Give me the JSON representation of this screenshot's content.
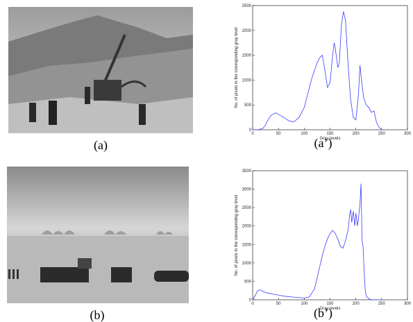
{
  "photos": [
    {
      "caption": "(a)"
    },
    {
      "caption": "(b)"
    }
  ],
  "chart_data": [
    {
      "type": "line",
      "caption": "(a’)",
      "x_label": "Gray levels",
      "y_label": "No. of pixels in the corresponding gray level",
      "x": [
        0,
        10,
        20,
        25,
        30,
        35,
        40,
        45,
        50,
        55,
        60,
        70,
        80,
        90,
        100,
        105,
        110,
        115,
        120,
        125,
        130,
        135,
        140,
        145,
        150,
        155,
        158,
        160,
        165,
        168,
        172,
        176,
        180,
        185,
        190,
        195,
        200,
        205,
        208,
        212,
        215,
        220,
        225,
        230,
        235,
        240,
        245,
        250
      ],
      "series": [
        {
          "color": "#3b3bff",
          "values": [
            0,
            0,
            30,
            100,
            200,
            280,
            320,
            340,
            310,
            280,
            250,
            180,
            160,
            250,
            450,
            650,
            850,
            1050,
            1200,
            1350,
            1450,
            1500,
            1200,
            850,
            950,
            1500,
            1750,
            1650,
            1250,
            1350,
            2100,
            2380,
            2200,
            1300,
            600,
            250,
            200,
            700,
            1300,
            900,
            650,
            500,
            450,
            350,
            380,
            150,
            50,
            0
          ]
        }
      ],
      "xlim": [
        0,
        300
      ],
      "xticks": [
        0,
        50,
        100,
        150,
        200,
        250,
        300
      ],
      "ylim": [
        0,
        2500
      ],
      "yticks": [
        0,
        500,
        1000,
        1500,
        2000,
        2500
      ]
    },
    {
      "type": "line",
      "caption": "(b’)",
      "x_label": "Gray levels",
      "y_label": "No. of pixels in the corresponding gray level",
      "x": [
        0,
        5,
        10,
        15,
        20,
        30,
        40,
        50,
        60,
        80,
        100,
        110,
        120,
        125,
        130,
        135,
        140,
        145,
        150,
        155,
        160,
        165,
        170,
        175,
        180,
        185,
        188,
        190,
        192,
        195,
        198,
        200,
        203,
        205,
        208,
        210,
        212,
        214,
        216,
        218,
        220,
        225,
        230,
        250
      ],
      "series": [
        {
          "color": "#3b3bff",
          "values": [
            0,
            120,
            250,
            270,
            220,
            180,
            150,
            130,
            100,
            70,
            50,
            80,
            300,
            600,
            900,
            1200,
            1450,
            1650,
            1800,
            1880,
            1800,
            1650,
            1450,
            1400,
            1600,
            1900,
            2300,
            2450,
            2100,
            2400,
            2000,
            2350,
            2000,
            2200,
            2600,
            3150,
            1600,
            1450,
            800,
            300,
            100,
            30,
            0,
            0
          ]
        }
      ],
      "xlim": [
        0,
        300
      ],
      "xticks": [
        0,
        50,
        100,
        150,
        200,
        250,
        300
      ],
      "ylim": [
        0,
        3500
      ],
      "yticks": [
        0,
        500,
        1000,
        1500,
        2000,
        2500,
        3000,
        3500
      ]
    }
  ]
}
